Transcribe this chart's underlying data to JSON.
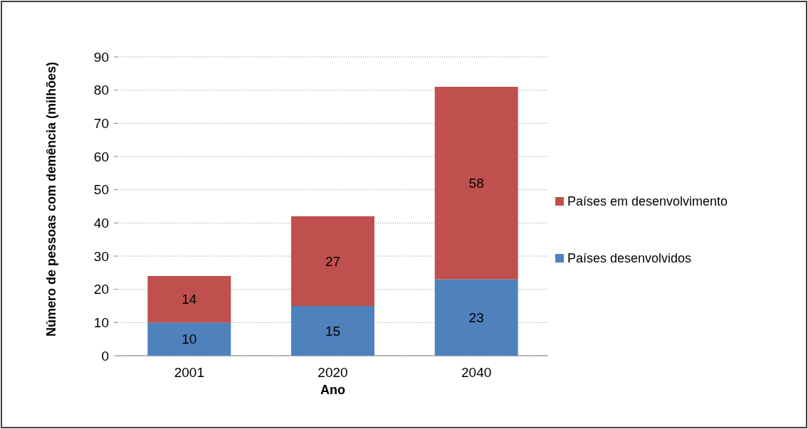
{
  "chart_data": {
    "type": "bar",
    "stacked": true,
    "xlabel": "Ano",
    "ylabel": "Número de pessoas com demência (milhões)",
    "categories": [
      "2001",
      "2020",
      "2040"
    ],
    "series": [
      {
        "name": "Países desenvolvidos",
        "color": "#4f81bd",
        "values": [
          10,
          15,
          23
        ]
      },
      {
        "name": "Países em desenvolvimento",
        "color": "#c0504d",
        "values": [
          14,
          27,
          58
        ]
      }
    ],
    "ylim": [
      0,
      90
    ],
    "yticks": [
      0,
      10,
      20,
      30,
      40,
      50,
      60,
      70,
      80,
      90
    ],
    "grid": "y",
    "legend": "right",
    "data_labels": true
  }
}
